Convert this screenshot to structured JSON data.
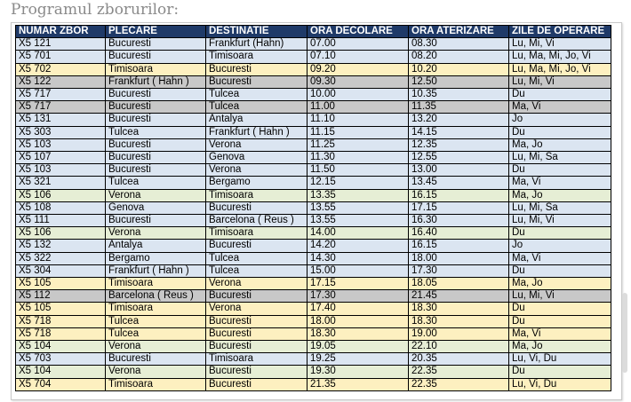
{
  "title": "Programul zborurilor:",
  "table": {
    "headers": [
      "NUMAR ZBOR",
      "PLECARE",
      "DESTINATIE",
      "ORA DECOLARE",
      "ORA ATERIZARE",
      "ZILE DE OPERARE"
    ],
    "row_colors": {
      "blue": "#dbe5f1",
      "yellow": "#fdf0c0",
      "gray": "#c8c8c8",
      "green": "#e6eed5",
      "header": "#1f3a68"
    },
    "rows": [
      {
        "color": "blue",
        "cells": [
          "X5 121",
          "Bucuresti",
          "Frankfurt (Hahn)",
          "07.00",
          "08.30",
          "Lu, Mi, Vi"
        ]
      },
      {
        "color": "blue",
        "cells": [
          "X5 701",
          "Bucuresti",
          "Timisoara",
          "07.10",
          "08.20",
          "Lu, Ma, Mi, Jo, Vi"
        ]
      },
      {
        "color": "yellow",
        "cells": [
          "X5 702",
          "Timisoara",
          "Bucuresti",
          "09.20",
          "10.20",
          "Lu, Ma, Mi, Jo, Vi"
        ]
      },
      {
        "color": "gray",
        "cells": [
          "X5 122",
          "Frankfurt ( Hahn )",
          "Bucuresti",
          "09.30",
          "12.50",
          "Lu, Mi, Vi"
        ]
      },
      {
        "color": "blue",
        "cells": [
          "X5 717",
          "Bucuresti",
          "Tulcea",
          "10.00",
          "10.35",
          "Du"
        ]
      },
      {
        "color": "gray",
        "cells": [
          "X5 717",
          "Bucuresti",
          "Tulcea",
          "11.00",
          "11.35",
          "Ma, Vi"
        ]
      },
      {
        "color": "blue",
        "cells": [
          "X5 131",
          "Bucuresti",
          "Antalya",
          "11.10",
          "13.20",
          "Jo"
        ]
      },
      {
        "color": "blue",
        "cells": [
          "X5 303",
          "Tulcea",
          "Frankfurt ( Hahn )",
          "11.15",
          "14.15",
          "Du"
        ]
      },
      {
        "color": "blue",
        "cells": [
          "X5 103",
          "Bucuresti",
          "Verona",
          "11.25",
          "12.35",
          "Ma, Jo"
        ]
      },
      {
        "color": "blue",
        "cells": [
          "X5 107",
          "Bucuresti",
          "Genova",
          "11.30",
          "12.55",
          "Lu, Mi, Sa"
        ]
      },
      {
        "color": "blue",
        "cells": [
          "X5 103",
          "Bucuresti",
          "Verona",
          "11.50",
          "13.00",
          "Du"
        ]
      },
      {
        "color": "blue",
        "cells": [
          "X5 321",
          "Tulcea",
          "Bergamo",
          "12.15",
          "13.45",
          "Ma, Vi"
        ]
      },
      {
        "color": "green",
        "cells": [
          "X5 106",
          "Verona",
          "Timisoara",
          "13.35",
          "16.15",
          "Ma, Jo"
        ]
      },
      {
        "color": "blue",
        "cells": [
          "X5 108",
          "Genova",
          "Bucuresti",
          "13.55",
          "17.15",
          "Lu, Mi, Sa"
        ]
      },
      {
        "color": "blue",
        "cells": [
          "X5 111",
          "Bucuresti",
          "Barcelona ( Reus )",
          "13.55",
          "16.30",
          "Lu, Mi, Vi"
        ]
      },
      {
        "color": "green",
        "cells": [
          "X5 106",
          "Verona",
          "Timisoara",
          "14.00",
          "16.40",
          "Du"
        ]
      },
      {
        "color": "blue",
        "cells": [
          "X5 132",
          "Antalya",
          "Bucuresti",
          "14.20",
          "16.15",
          "Jo"
        ]
      },
      {
        "color": "blue",
        "cells": [
          "X5 322",
          "Bergamo",
          "Tulcea",
          "14.30",
          "18.00",
          "Ma, Vi"
        ]
      },
      {
        "color": "blue",
        "cells": [
          "X5 304",
          "Frankfurt ( Hahn )",
          "Tulcea",
          "15.00",
          "17.30",
          "Du"
        ]
      },
      {
        "color": "yellow",
        "cells": [
          "X5 105",
          "Timisoara",
          "Verona",
          "17.15",
          "18.05",
          "Ma, Jo"
        ]
      },
      {
        "color": "gray",
        "cells": [
          "X5 112",
          "Barcelona ( Reus )",
          "Bucuresti",
          "17.30",
          "21.45",
          "Lu, Mi, Vi"
        ]
      },
      {
        "color": "yellow",
        "cells": [
          "X5 105",
          "Timisoara",
          "Verona",
          "17.40",
          "18.30",
          "Du"
        ]
      },
      {
        "color": "yellow",
        "cells": [
          "X5 718",
          "Tulcea",
          "Bucuresti",
          "18.00",
          "18.30",
          "Du"
        ]
      },
      {
        "color": "yellow",
        "cells": [
          "X5 718",
          "Tulcea",
          "Bucuresti",
          "18.30",
          "19.00",
          "Ma, Vi"
        ]
      },
      {
        "color": "green",
        "cells": [
          "X5 104",
          "Verona",
          "Bucuresti",
          "19.05",
          "22.10",
          "Ma, Jo"
        ]
      },
      {
        "color": "blue",
        "cells": [
          "X5 703",
          "Bucuresti",
          "Timisoara",
          "19.25",
          "20.35",
          "Lu, Vi, Du"
        ]
      },
      {
        "color": "green",
        "cells": [
          "X5 104",
          "Verona",
          "Bucuresti",
          "19.30",
          "22.35",
          "Du"
        ]
      },
      {
        "color": "yellow",
        "cells": [
          "X5 704",
          "Timisoara",
          "Bucuresti",
          "21.35",
          "22.35",
          "Lu, Vi, Du"
        ]
      }
    ]
  }
}
